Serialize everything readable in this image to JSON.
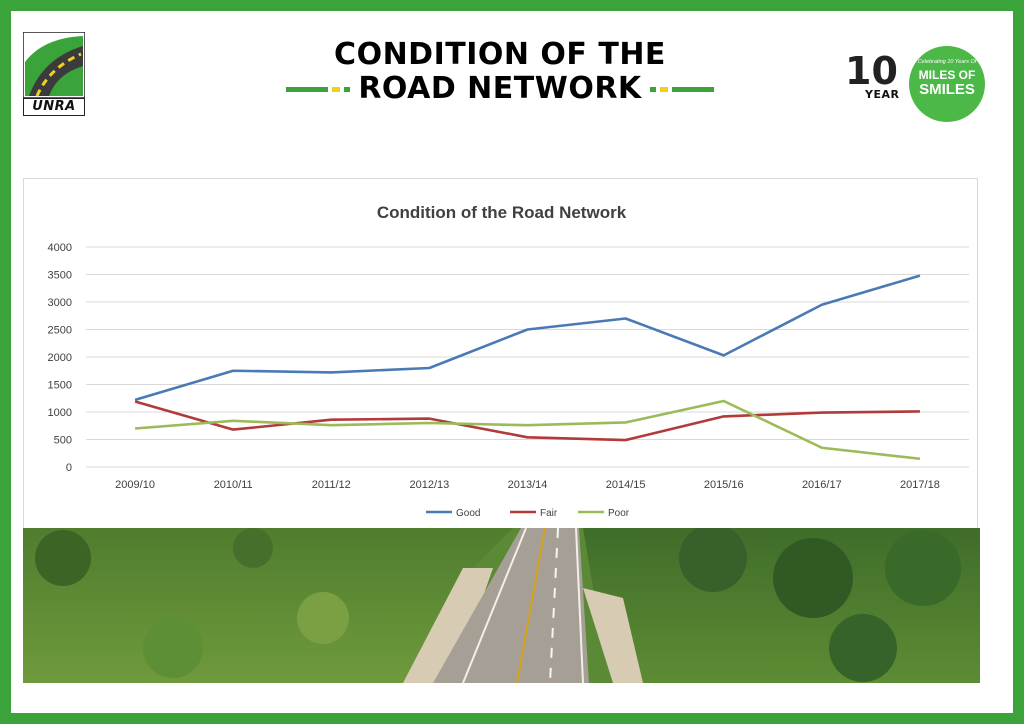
{
  "header": {
    "title_line1": "CONDITION OF THE",
    "title_line2": "ROAD NETWORK",
    "logo_left_text": "UNRA",
    "logo_right": {
      "number": "10",
      "year_text": "YEAR",
      "tagline": "Celebrating 10 Years Of",
      "miles_line1": "MILES OF",
      "miles_line2": "SMILES"
    }
  },
  "colors": {
    "brand_green": "#3aa33a",
    "accent_yellow": "#f2d21b"
  },
  "chart_data": {
    "type": "line",
    "title": "Condition of the Road Network",
    "categories": [
      "2009/10",
      "2010/11",
      "2011/12",
      "2012/13",
      "2013/14",
      "2014/15",
      "2015/16",
      "2016/17",
      "2017/18"
    ],
    "series": [
      {
        "name": "Good",
        "color": "#4a7ab5",
        "values": [
          1220,
          1750,
          1720,
          1800,
          2500,
          2700,
          2030,
          2950,
          3480
        ]
      },
      {
        "name": "Fair",
        "color": "#b23a3a",
        "values": [
          1190,
          680,
          860,
          880,
          540,
          490,
          920,
          990,
          1010
        ]
      },
      {
        "name": "Poor",
        "color": "#9bbb59",
        "values": [
          700,
          840,
          760,
          800,
          760,
          810,
          1200,
          350,
          150
        ]
      }
    ],
    "ylim": [
      0,
      4000
    ],
    "yticks": [
      0,
      500,
      1000,
      1500,
      2000,
      2500,
      3000,
      3500,
      4000
    ],
    "grid": true,
    "legend": "bottom",
    "xlabel": "",
    "ylabel": ""
  },
  "photo": {
    "icon": "road-landscape-photo"
  }
}
